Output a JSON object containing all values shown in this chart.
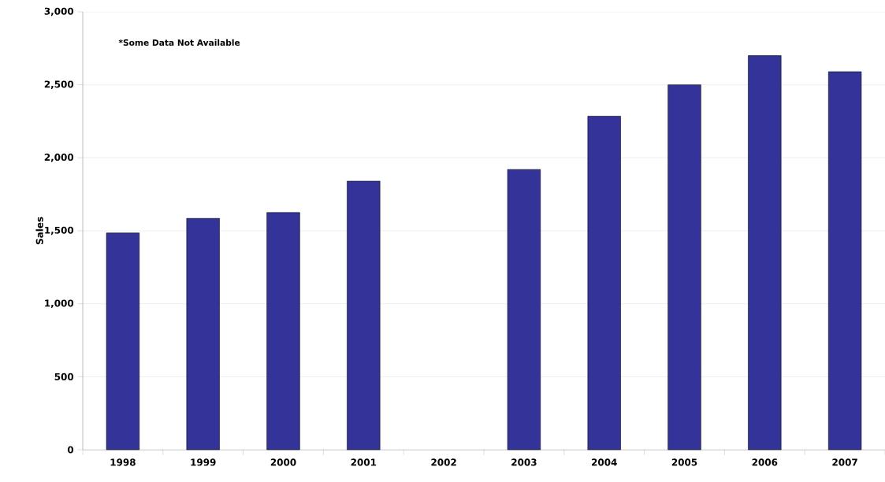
{
  "chart_data": {
    "type": "bar",
    "ylabel": "Sales",
    "categories": [
      "1998",
      "1999",
      "2000",
      "2001",
      "2002",
      "2003",
      "2004",
      "2005",
      "2006",
      "2007"
    ],
    "values": [
      1485,
      1585,
      1625,
      1840,
      null,
      1920,
      2285,
      2500,
      2700,
      2590
    ],
    "color": "#333399",
    "ylim": [
      0,
      3000
    ],
    "yticks": [
      {
        "value": 0,
        "label": "0"
      },
      {
        "value": 500,
        "label": "500"
      },
      {
        "value": 1000,
        "label": "1,000"
      },
      {
        "value": 1500,
        "label": "1,500"
      },
      {
        "value": 2000,
        "label": "2,000"
      },
      {
        "value": 2500,
        "label": "2,500"
      },
      {
        "value": 3000,
        "label": "3,000"
      }
    ],
    "grid": "y",
    "annotations": [
      "*Some Data Not Available"
    ]
  }
}
